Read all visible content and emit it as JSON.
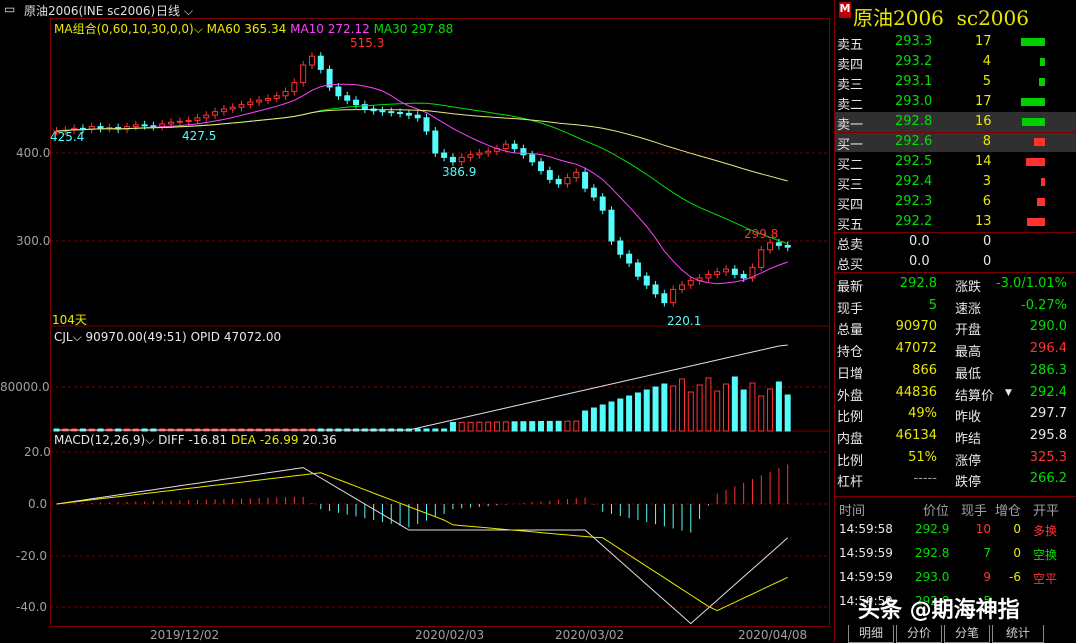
{
  "title": {
    "name": "原油2006(INE sc2006)",
    "period": "日线"
  },
  "price_pane": {
    "ma_label": "MA组合(0,60,10,30,0,0)",
    "ma60": "MA60 365.34",
    "ma10": "MA10 272.12",
    "ma30": "MA30 297.88",
    "annotations": [
      "515.3",
      "425.4",
      "427.5",
      "386.9",
      "220.1",
      "299.8"
    ],
    "days_label": "104天",
    "y_ticks": [
      "400.0",
      "300.0"
    ]
  },
  "volume_pane": {
    "label": "CJL",
    "value": "90970.00(49:51)",
    "opid": "OPID 47072.00",
    "y_tick": "80000.0"
  },
  "macd_pane": {
    "label": "MACD(12,26,9)",
    "diff": "DIFF -16.81",
    "dea": "DEA -26.99",
    "macd": "20.36",
    "y_ticks": [
      "20.0",
      "0.0",
      "-20.0",
      "-40.0"
    ]
  },
  "x_dates": [
    "2019/12/02",
    "2020/02/03",
    "2020/03/02",
    "2020/04/08"
  ],
  "quote": {
    "header": "原油2006  sc2006",
    "badge": "M",
    "asks": [
      {
        "label": "卖五",
        "price": "293.3",
        "vol": "17",
        "bar": 1.0
      },
      {
        "label": "卖四",
        "price": "293.2",
        "vol": "4",
        "bar": 0.2
      },
      {
        "label": "卖三",
        "price": "293.1",
        "vol": "5",
        "bar": 0.25
      },
      {
        "label": "卖二",
        "price": "293.0",
        "vol": "17",
        "bar": 1.0
      },
      {
        "label": "卖一",
        "price": "292.8",
        "vol": "16",
        "bar": 0.95
      }
    ],
    "bids": [
      {
        "label": "买一",
        "price": "292.6",
        "vol": "8",
        "bar": 0.45
      },
      {
        "label": "买二",
        "price": "292.5",
        "vol": "14",
        "bar": 0.8
      },
      {
        "label": "买三",
        "price": "292.4",
        "vol": "3",
        "bar": 0.15
      },
      {
        "label": "买四",
        "price": "292.3",
        "vol": "6",
        "bar": 0.35
      },
      {
        "label": "买五",
        "price": "292.2",
        "vol": "13",
        "bar": 0.75
      }
    ],
    "totals": [
      {
        "label": "总卖",
        "a": "0.0",
        "b": "0"
      },
      {
        "label": "总买",
        "a": "0.0",
        "b": "0"
      }
    ],
    "stats": [
      {
        "l1": "最新",
        "v1": "292.8",
        "c1": "green",
        "l2": "涨跌",
        "v2": "-3.0/1.01%",
        "c2": "green"
      },
      {
        "l1": "现手",
        "v1": "5",
        "c1": "green",
        "l2": "速涨",
        "v2": "-0.27%",
        "c2": "green"
      },
      {
        "l1": "总量",
        "v1": "90970",
        "c1": "yellow",
        "l2": "开盘",
        "v2": "290.0",
        "c2": "green"
      },
      {
        "l1": "持仓",
        "v1": "47072",
        "c1": "yellow",
        "l2": "最高",
        "v2": "296.4",
        "c2": "red"
      },
      {
        "l1": "日增",
        "v1": "866",
        "c1": "yellow",
        "l2": "最低",
        "v2": "286.3",
        "c2": "green"
      },
      {
        "l1": "外盘",
        "v1": "44836",
        "c1": "yellow",
        "l2": "结算价",
        "v2": "292.4",
        "c2": "green"
      },
      {
        "l1": "比例",
        "v1": "49%",
        "c1": "yellow",
        "l2": "昨收",
        "v2": "297.7",
        "c2": "white"
      },
      {
        "l1": "内盘",
        "v1": "46134",
        "c1": "yellow",
        "l2": "昨结",
        "v2": "295.8",
        "c2": "white"
      },
      {
        "l1": "比例",
        "v1": "51%",
        "c1": "yellow",
        "l2": "涨停",
        "v2": "325.3",
        "c2": "red"
      },
      {
        "l1": "杠杆",
        "v1": "-----",
        "c1": "gray",
        "l2": "跌停",
        "v2": "266.2",
        "c2": "green"
      }
    ],
    "ticks_header": [
      "时间",
      "价位",
      "现手",
      "增仓",
      "开平"
    ],
    "ticks": [
      {
        "time": "14:59:58",
        "price": "292.9",
        "vol": "10",
        "vc": "red",
        "inc": "0",
        "type": "多换",
        "tc": "red"
      },
      {
        "time": "14:59:59",
        "price": "292.8",
        "vol": "7",
        "vc": "green",
        "inc": "0",
        "type": "空换",
        "tc": "green"
      },
      {
        "time": "14:59:59",
        "price": "293.0",
        "vol": "9",
        "vc": "red",
        "inc": "-6",
        "type": "空平",
        "tc": "red"
      },
      {
        "time": "14:59:59",
        "price": "292.8",
        "vol": "5",
        "vc": "green",
        "inc": "",
        "type": "",
        "tc": "green"
      }
    ],
    "tabs": [
      "明细",
      "分价",
      "分笔",
      "统计"
    ]
  },
  "watermark": "头条 @期海神指"
}
